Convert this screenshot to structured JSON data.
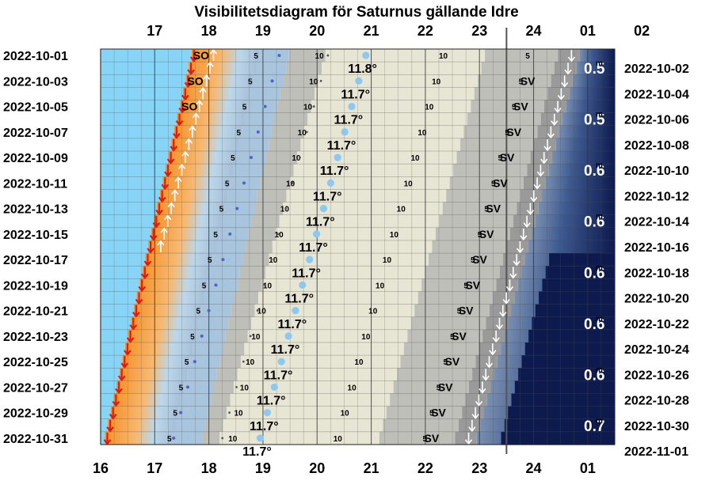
{
  "chart_data": {
    "type": "visibility-diagram",
    "title": "Visibilitetsdiagram för Saturnus gällande Idre",
    "x_ticks_top": [
      "17",
      "18",
      "19",
      "20",
      "21",
      "22",
      "23",
      "24",
      "01",
      "02"
    ],
    "x_ticks_bottom": [
      "16",
      "17",
      "18",
      "19",
      "20",
      "21",
      "22",
      "23",
      "24",
      "01"
    ],
    "dates_left": [
      "2022-10-01",
      "2022-10-03",
      "2022-10-05",
      "2022-10-07",
      "2022-10-09",
      "2022-10-11",
      "2022-10-13",
      "2022-10-15",
      "2022-10-17",
      "2022-10-19",
      "2022-10-21",
      "2022-10-23",
      "2022-10-25",
      "2022-10-27",
      "2022-10-29",
      "2022-10-31"
    ],
    "dates_right": [
      "2022-10-02",
      "2022-10-04",
      "2022-10-06",
      "2022-10-08",
      "2022-10-10",
      "2022-10-12",
      "2022-10-14",
      "2022-10-16",
      "2022-10-18",
      "2022-10-20",
      "2022-10-22",
      "2022-10-24",
      "2022-10-26",
      "2022-10-28",
      "2022-10-30",
      "2022-11-01"
    ],
    "date_range": [
      "2022-10-01",
      "2022-11-01"
    ],
    "bottom_axis_range_hours": [
      16,
      25.5
    ],
    "top_axis_offset_hours": 1,
    "sunset": {
      "start_hour": 17.68,
      "end_hour": 16.08,
      "label": "SO"
    },
    "planet_set": {
      "start_hour": 24.7,
      "end_hour": 22.8,
      "label": "SV"
    },
    "transit": {
      "start_hour": 20.9,
      "end_hour": 18.95
    },
    "max_altitude_labels": [
      "11.8°",
      "11.7°",
      "11.7°",
      "11.7°",
      "11.7°",
      "11.7°",
      "11.7°",
      "11.7°",
      "11.7°",
      "11.7°",
      "11.7°",
      "11.7°",
      "11.7°",
      "11.7°",
      "11.7°",
      "11.7°"
    ],
    "altitude_marks": [
      "5",
      "10"
    ],
    "magnitude_labels": [
      "0.5",
      "0.5",
      "0.6",
      "0.6",
      "0.6",
      "0.6",
      "0.6",
      "0.7"
    ],
    "magnitude_unit": "m",
    "colors": {
      "day": "#88d4f7",
      "sunset_orange": "#f5922a",
      "twilight": "#a9c4dd",
      "night": "#0d1a4e",
      "visibility_band": "#e7e5d3",
      "low_band": "#bfbfba",
      "marker_sunset": "#e01b0a",
      "marker_rise": "#ffffff",
      "transit_dot": "#8ec8f0",
      "track_dot": "#5560c8"
    }
  }
}
